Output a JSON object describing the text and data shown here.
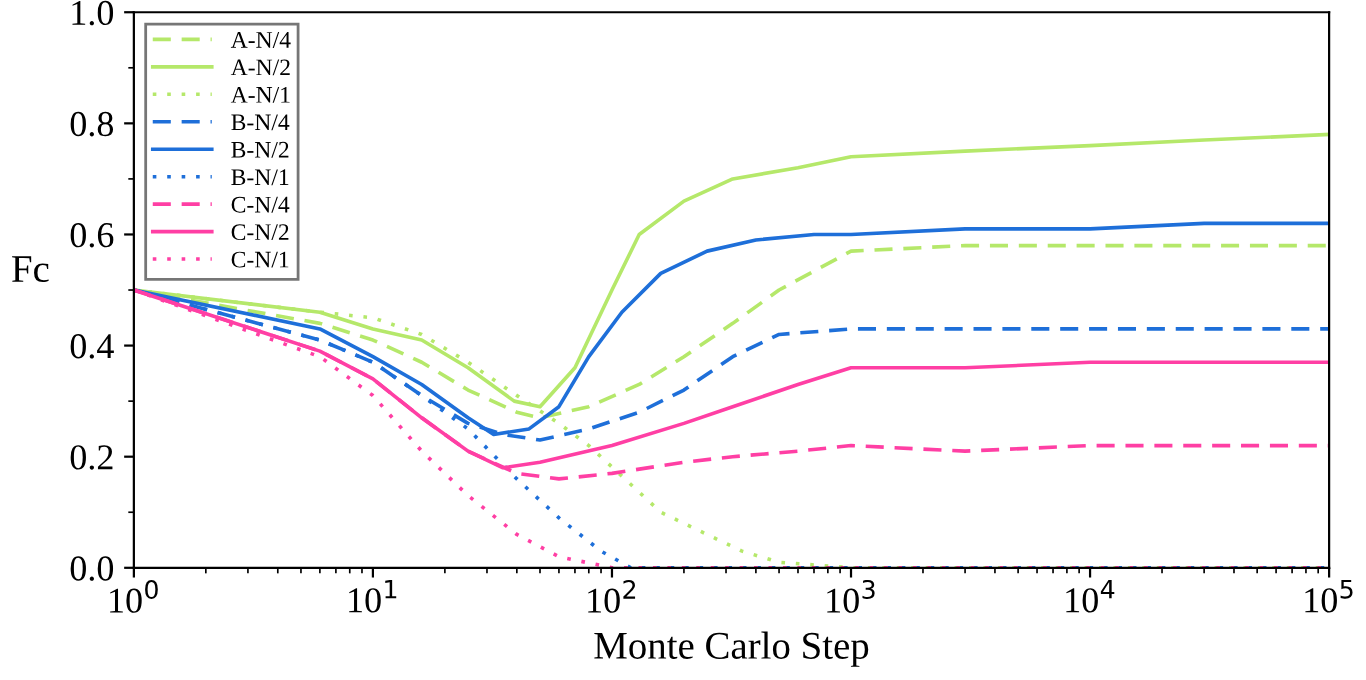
{
  "chart_data": {
    "type": "line",
    "xlabel": "Monte Carlo Step",
    "ylabel": "Fc",
    "log": "x",
    "grid": false,
    "legend": "top left",
    "xlim": [
      1,
      100000
    ],
    "ylim": [
      0.0,
      1.0
    ],
    "xticks": [
      {
        "value": 1,
        "label": "10$^{0}$"
      },
      {
        "value": 10,
        "label": "10$^{1}$"
      },
      {
        "value": 100,
        "label": "10$^{2}$"
      },
      {
        "value": 1000,
        "label": "10$^{3}$"
      },
      {
        "value": 10000,
        "label": "10$^{4}$"
      },
      {
        "value": 100000,
        "label": "10$^{5}$"
      }
    ],
    "yticks": [
      {
        "value": 0.0,
        "label": "0.0"
      },
      {
        "value": 0.2,
        "label": "0.2"
      },
      {
        "value": 0.4,
        "label": "0.4"
      },
      {
        "value": 0.6,
        "label": "0.6"
      },
      {
        "value": 0.8,
        "label": "0.8"
      },
      {
        "value": 1.0,
        "label": "1.0"
      }
    ],
    "series": [
      {
        "name": "A-N/4",
        "color": "#b5e86a",
        "line_style": "dashed",
        "x": [
          1,
          6,
          10,
          16,
          25,
          40,
          50,
          80,
          130,
          200,
          320,
          500,
          1000,
          3000,
          10000,
          30000,
          100000
        ],
        "values": [
          0.5,
          0.44,
          0.41,
          0.37,
          0.32,
          0.28,
          0.27,
          0.29,
          0.33,
          0.38,
          0.44,
          0.5,
          0.57,
          0.58,
          0.58,
          0.58,
          0.58
        ]
      },
      {
        "name": "A-N/2",
        "color": "#b5e86a",
        "line_style": "solid",
        "x": [
          1,
          6,
          10,
          16,
          25,
          39,
          50,
          70,
          100,
          130,
          200,
          320,
          600,
          1000,
          3000,
          10000,
          30000,
          100000
        ],
        "values": [
          0.5,
          0.46,
          0.43,
          0.41,
          0.36,
          0.3,
          0.29,
          0.36,
          0.5,
          0.6,
          0.66,
          0.7,
          0.72,
          0.74,
          0.75,
          0.76,
          0.77,
          0.78
        ]
      },
      {
        "name": "A-N/1",
        "color": "#b5e86a",
        "line_style": "dotted",
        "x": [
          1,
          6,
          10,
          16,
          25,
          40,
          60,
          80,
          120,
          160,
          250,
          350,
          500,
          1000,
          100000
        ],
        "values": [
          0.5,
          0.46,
          0.45,
          0.42,
          0.37,
          0.31,
          0.26,
          0.22,
          0.15,
          0.1,
          0.06,
          0.03,
          0.01,
          0.0,
          0.0
        ]
      },
      {
        "name": "B-N/4",
        "color": "#1e6fd9",
        "line_style": "dashed",
        "x": [
          1,
          6,
          10,
          16,
          25,
          35,
          50,
          80,
          130,
          200,
          320,
          500,
          1000,
          3000,
          10000,
          30000,
          100000
        ],
        "values": [
          0.5,
          0.41,
          0.37,
          0.31,
          0.26,
          0.24,
          0.23,
          0.25,
          0.28,
          0.32,
          0.38,
          0.42,
          0.43,
          0.43,
          0.43,
          0.43,
          0.43
        ]
      },
      {
        "name": "B-N/2",
        "color": "#1e6fd9",
        "line_style": "solid",
        "x": [
          1,
          6,
          10,
          16,
          25,
          32,
          45,
          60,
          80,
          110,
          160,
          250,
          400,
          700,
          1000,
          3000,
          10000,
          30000,
          100000
        ],
        "values": [
          0.5,
          0.43,
          0.38,
          0.33,
          0.27,
          0.24,
          0.25,
          0.29,
          0.38,
          0.46,
          0.53,
          0.57,
          0.59,
          0.6,
          0.6,
          0.61,
          0.61,
          0.62,
          0.62
        ]
      },
      {
        "name": "B-N/1",
        "color": "#1e6fd9",
        "line_style": "dotted",
        "x": [
          1,
          6,
          10,
          16,
          25,
          40,
          60,
          90,
          120,
          100000
        ],
        "values": [
          0.5,
          0.41,
          0.37,
          0.31,
          0.25,
          0.16,
          0.09,
          0.03,
          0.0,
          0.0
        ]
      },
      {
        "name": "C-N/4",
        "color": "#ff3fa4",
        "line_style": "dashed",
        "x": [
          1,
          6,
          10,
          16,
          25,
          40,
          60,
          100,
          200,
          320,
          600,
          1000,
          3000,
          10000,
          30000,
          100000
        ],
        "values": [
          0.5,
          0.39,
          0.34,
          0.27,
          0.21,
          0.17,
          0.16,
          0.17,
          0.19,
          0.2,
          0.21,
          0.22,
          0.21,
          0.22,
          0.22,
          0.22
        ]
      },
      {
        "name": "C-N/2",
        "color": "#ff3fa4",
        "line_style": "solid",
        "x": [
          1,
          6,
          10,
          16,
          25,
          35,
          50,
          100,
          200,
          320,
          600,
          1000,
          3000,
          10000,
          30000,
          100000
        ],
        "values": [
          0.5,
          0.39,
          0.34,
          0.27,
          0.21,
          0.18,
          0.19,
          0.22,
          0.26,
          0.29,
          0.33,
          0.36,
          0.36,
          0.37,
          0.37,
          0.37
        ]
      },
      {
        "name": "C-N/1",
        "color": "#ff3fa4",
        "line_style": "dotted",
        "x": [
          1,
          6,
          10,
          16,
          25,
          40,
          60,
          100,
          100000
        ],
        "values": [
          0.5,
          0.38,
          0.31,
          0.21,
          0.13,
          0.06,
          0.02,
          0.0,
          0.0
        ]
      }
    ]
  }
}
